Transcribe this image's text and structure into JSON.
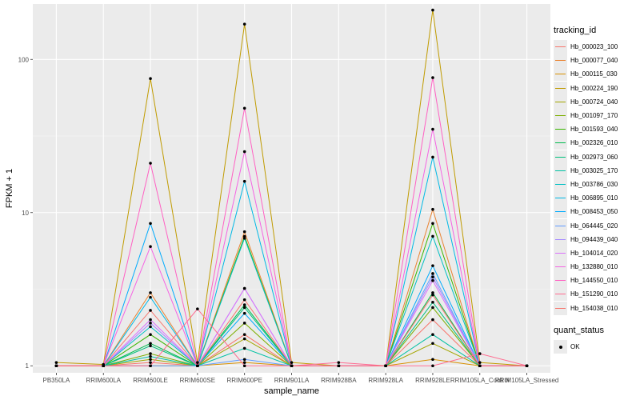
{
  "chart_data": {
    "type": "line",
    "xlabel": "sample_name",
    "ylabel": "FPKM + 1",
    "yscale": "log10",
    "ylim": [
      0.9,
      230
    ],
    "yticks": [
      1,
      10,
      100
    ],
    "ytick_labels": [
      "1",
      "10",
      "100"
    ],
    "grid": true,
    "legend_placement": "right",
    "categories": [
      "PB350LA",
      "RRIM600LA",
      "RRIM600LE",
      "RRIM600SE",
      "RRIM600PE",
      "RRIM901LA",
      "RRIM928BA",
      "RRIM928LA",
      "RRIM928LE",
      "RRIM105LA_Control",
      "RRIM105LA_Stressed"
    ],
    "legend_title": "tracking_id",
    "series": [
      {
        "name": "Hb_000023_100",
        "color": "#F8766D",
        "values": [
          1.0,
          1.0,
          1.05,
          1.0,
          1.6,
          1.0,
          1.0,
          1.0,
          2.0,
          1.0,
          1.0
        ]
      },
      {
        "name": "Hb_000077_040",
        "color": "#EA8331",
        "values": [
          1.0,
          1.0,
          3.0,
          1.0,
          7.5,
          1.0,
          1.0,
          1.0,
          10.5,
          1.0,
          1.0
        ]
      },
      {
        "name": "Hb_000115_030",
        "color": "#D89000",
        "values": [
          1.0,
          1.0,
          1.0,
          1.0,
          1.05,
          1.0,
          1.0,
          1.0,
          1.1,
          1.0,
          1.0
        ]
      },
      {
        "name": "Hb_000224_190",
        "color": "#C09B00",
        "values": [
          1.05,
          1.02,
          75,
          1.05,
          170,
          1.05,
          1.0,
          1.0,
          210,
          1.05,
          1.0
        ]
      },
      {
        "name": "Hb_000724_040",
        "color": "#A3A500",
        "values": [
          1.0,
          1.0,
          1.1,
          1.0,
          1.5,
          1.0,
          1.0,
          1.0,
          1.4,
          1.0,
          1.0
        ]
      },
      {
        "name": "Hb_001097_170",
        "color": "#7CAE00",
        "values": [
          1.0,
          1.0,
          1.2,
          1.0,
          1.9,
          1.0,
          1.0,
          1.0,
          2.4,
          1.0,
          1.0
        ]
      },
      {
        "name": "Hb_001593_040",
        "color": "#39B600",
        "values": [
          1.0,
          1.0,
          1.6,
          1.0,
          7.0,
          1.0,
          1.0,
          1.0,
          8.5,
          1.0,
          1.0
        ]
      },
      {
        "name": "Hb_002326_010",
        "color": "#00BB4E",
        "values": [
          1.0,
          1.0,
          1.4,
          1.0,
          2.5,
          1.0,
          1.0,
          1.0,
          3.0,
          1.0,
          1.0
        ]
      },
      {
        "name": "Hb_002973_060",
        "color": "#00BF7D",
        "values": [
          1.0,
          1.0,
          1.35,
          1.0,
          2.4,
          1.0,
          1.0,
          1.0,
          2.6,
          1.0,
          1.0
        ]
      },
      {
        "name": "Hb_003025_170",
        "color": "#00C1A3",
        "values": [
          1.0,
          1.0,
          1.15,
          1.0,
          1.3,
          1.0,
          1.0,
          1.0,
          1.6,
          1.0,
          1.0
        ]
      },
      {
        "name": "Hb_003786_030",
        "color": "#00BFC4",
        "values": [
          1.0,
          1.0,
          1.8,
          1.0,
          6.8,
          1.0,
          1.0,
          1.0,
          7.0,
          1.0,
          1.0
        ]
      },
      {
        "name": "Hb_006895_010",
        "color": "#00B8E5",
        "values": [
          1.0,
          1.0,
          2.8,
          1.0,
          16,
          1.0,
          1.0,
          1.0,
          23,
          1.0,
          1.0
        ]
      },
      {
        "name": "Hb_008453_050",
        "color": "#00ABFD",
        "values": [
          1.0,
          1.0,
          8.5,
          1.0,
          2.2,
          1.0,
          1.0,
          1.0,
          4.5,
          1.0,
          1.0
        ]
      },
      {
        "name": "Hb_064445_020",
        "color": "#619CFF",
        "values": [
          1.0,
          1.0,
          1.0,
          1.0,
          1.1,
          1.0,
          1.0,
          1.0,
          4.0,
          1.0,
          1.0
        ]
      },
      {
        "name": "Hb_094439_040",
        "color": "#A58AFF",
        "values": [
          1.0,
          1.0,
          1.9,
          1.0,
          3.2,
          1.0,
          1.0,
          1.0,
          3.8,
          1.0,
          1.0
        ]
      },
      {
        "name": "Hb_104014_020",
        "color": "#DB72FB",
        "values": [
          1.0,
          1.0,
          2.0,
          1.0,
          3.2,
          1.0,
          1.0,
          1.0,
          3.6,
          1.0,
          1.0
        ]
      },
      {
        "name": "Hb_132880_010",
        "color": "#F564E3",
        "values": [
          1.0,
          1.0,
          6.0,
          1.0,
          25,
          1.0,
          1.0,
          1.0,
          35,
          1.0,
          1.0
        ]
      },
      {
        "name": "Hb_144550_010",
        "color": "#FF61C3",
        "values": [
          1.0,
          1.0,
          21,
          1.0,
          48,
          1.0,
          1.0,
          1.0,
          76,
          1.0,
          1.0
        ]
      },
      {
        "name": "Hb_151290_010",
        "color": "#FF6C91",
        "values": [
          1.0,
          1.0,
          1.0,
          2.35,
          1.0,
          1.0,
          1.05,
          1.0,
          1.0,
          1.2,
          1.0
        ]
      },
      {
        "name": "Hb_154038_010",
        "color": "#F8766D",
        "values": [
          1.0,
          1.0,
          2.3,
          1.0,
          2.7,
          1.0,
          1.0,
          1.0,
          2.9,
          1.0,
          1.0
        ]
      }
    ],
    "shape_legend_title": "quant_status",
    "shape_legend_items": [
      "OK"
    ]
  }
}
